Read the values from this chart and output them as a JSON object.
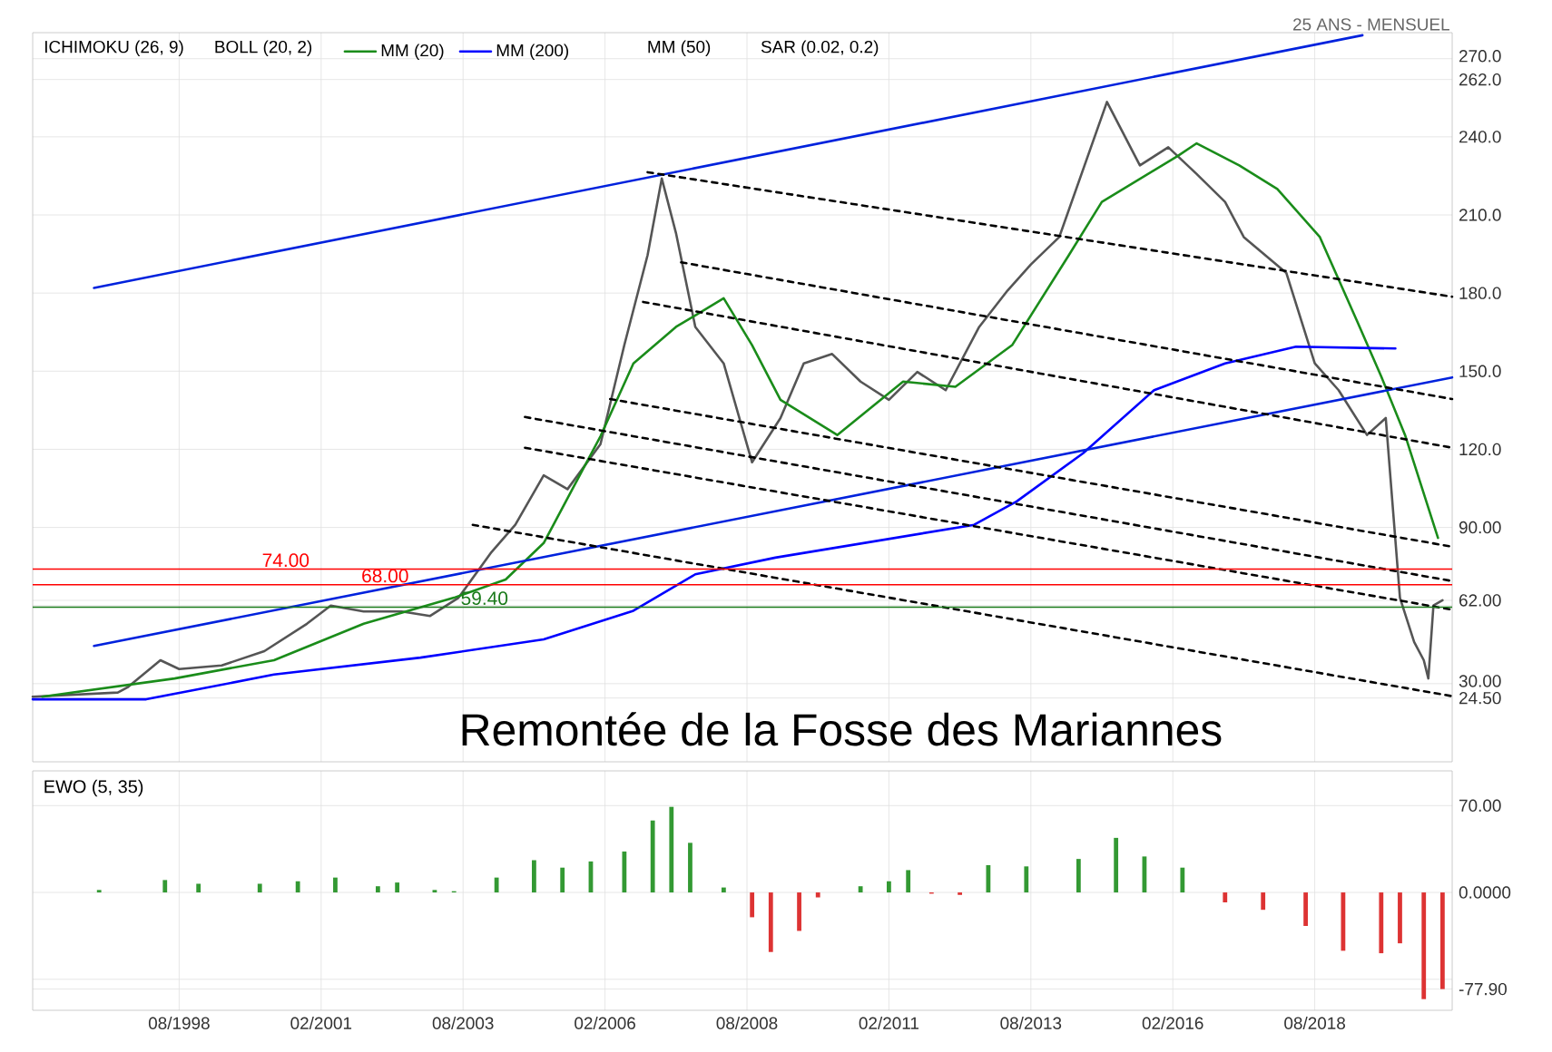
{
  "chart_data": [
    {
      "type": "line",
      "xlim": [
        "1996-01",
        "2021-01"
      ],
      "ylim": [
        0,
        280
      ],
      "xticks": [
        "1998-08",
        "2001-02",
        "2003-08",
        "2006-02",
        "2008-08",
        "2011-02",
        "2013-08",
        "2016-02",
        "2018-08"
      ],
      "yticks": [
        {
          "value": 24.5,
          "label": "24.50"
        },
        {
          "value": 30,
          "label": "30.00"
        },
        {
          "value": 60,
          "label": null
        },
        {
          "value": 62,
          "label": "62.00"
        },
        {
          "value": 90,
          "label": "90.00"
        },
        {
          "value": 120,
          "label": "120.0"
        },
        {
          "value": 150,
          "label": "150.0"
        },
        {
          "value": 180,
          "label": "180.0"
        },
        {
          "value": 210,
          "label": "210.0"
        },
        {
          "value": 240,
          "label": "240.0"
        },
        {
          "value": 262,
          "label": "262.0"
        },
        {
          "value": 270,
          "label": "270.0"
        }
      ],
      "grid": true,
      "legend": "top left",
      "tick_labels": "y",
      "series": [
        {
          "color": "#555555",
          "line_style": "solid",
          "x": [
            "1996-01",
            "1997-07",
            "1997-09",
            "1998-04",
            "1998-08",
            "1999-05",
            "2000-02",
            "2000-11",
            "2001-04",
            "2001-11",
            "2002-07",
            "2003-01",
            "2003-07",
            "2004-02",
            "2004-07",
            "2005-01",
            "2005-06",
            "2006-01",
            "2006-06",
            "2006-11",
            "2007-02",
            "2007-05",
            "2007-09",
            "2008-03",
            "2008-09",
            "2009-03",
            "2009-08",
            "2010-02",
            "2010-08",
            "2011-02",
            "2011-08",
            "2012-02",
            "2012-09",
            "2013-03",
            "2013-08",
            "2014-02",
            "2014-12",
            "2015-07",
            "2016-01",
            "2016-07",
            "2017-01",
            "2017-05",
            "2018-02",
            "2018-08",
            "2019-01",
            "2019-07",
            "2019-11",
            "2020-02",
            "2020-05",
            "2020-07",
            "2020-08",
            "2020-09",
            "2020-11"
          ],
          "values": [
            25,
            26.6,
            28.6,
            39,
            35.6,
            37,
            42.5,
            53,
            60,
            57.7,
            57.7,
            56,
            63,
            80.5,
            91,
            110,
            104.7,
            122,
            160,
            194.6,
            224,
            203,
            167,
            153,
            115,
            132,
            153,
            156.6,
            146,
            139,
            149.7,
            142.7,
            167,
            181,
            191,
            201.5,
            253.4,
            229,
            236,
            225.7,
            215,
            201.5,
            187.7,
            153,
            142.7,
            125.5,
            132,
            63,
            46,
            39,
            32,
            60,
            62
          ]
        },
        {
          "name": "MM (20)",
          "color": "#1a8c1a",
          "line_style": "solid",
          "x": [
            "1996-03",
            "1998-07",
            "2000-04",
            "2001-11",
            "2003-06",
            "2004-05",
            "2005-01",
            "2006-01",
            "2006-08",
            "2007-05",
            "2008-03",
            "2008-09",
            "2009-03",
            "2010-03",
            "2011-05",
            "2012-04",
            "2013-04",
            "2014-04",
            "2014-11",
            "2016-03",
            "2016-07",
            "2017-04",
            "2017-12",
            "2018-09",
            "2019-05",
            "2019-10",
            "2020-03",
            "2020-10"
          ],
          "values": [
            25,
            32,
            39,
            53,
            63,
            70,
            84,
            125,
            153,
            167,
            178,
            160,
            139,
            125.5,
            146,
            144,
            160,
            194.6,
            215,
            232.7,
            237.5,
            229,
            220,
            201.5,
            169,
            148,
            125.5,
            86
          ]
        },
        {
          "name": "MM (200)",
          "color": "#0000ff",
          "line_style": "solid",
          "x": [
            "1996-01",
            "1998-01",
            "2000-04",
            "2002-11",
            "2005-01",
            "2006-08",
            "2007-09",
            "2009-02",
            "2012-08",
            "2013-05",
            "2014-07",
            "2015-10",
            "2017-01",
            "2018-04",
            "2020-01"
          ],
          "values": [
            24,
            24,
            33.5,
            40,
            47,
            58,
            72,
            78.4,
            91,
            100,
            118.5,
            142.7,
            153,
            159.4,
            158.7
          ]
        },
        {
          "color": "#0022dd",
          "line_style": "solid",
          "x": [
            "1997-02",
            "2019-06"
          ],
          "values": [
            182,
            279
          ]
        },
        {
          "color": "#0022dd",
          "line_style": "solid",
          "x": [
            "1997-02",
            "2021-01"
          ],
          "values": [
            44.5,
            147.6
          ]
        },
        {
          "color": "#000000",
          "line_style": "dashed",
          "x": [
            "2006-11",
            "2021-01"
          ],
          "values": [
            226.4,
            178.6
          ]
        },
        {
          "color": "#000000",
          "line_style": "dashed",
          "x": [
            "2007-06",
            "2021-01"
          ],
          "values": [
            191.8,
            139.3
          ]
        },
        {
          "color": "#000000",
          "line_style": "dashed",
          "x": [
            "2006-10",
            "2021-01"
          ],
          "values": [
            176.6,
            120.6
          ]
        },
        {
          "color": "#000000",
          "line_style": "dashed",
          "x": [
            "2006-03",
            "2021-01"
          ],
          "values": [
            139.3,
            82.6
          ]
        },
        {
          "color": "#000000",
          "line_style": "dashed",
          "x": [
            "2004-09",
            "2021-01"
          ],
          "values": [
            132.4,
            69.4
          ]
        },
        {
          "color": "#000000",
          "line_style": "dashed",
          "x": [
            "2004-09",
            "2021-01"
          ],
          "values": [
            120.6,
            58.4
          ]
        },
        {
          "color": "#000000",
          "line_style": "dashed",
          "x": [
            "2003-10",
            "2021-01"
          ],
          "values": [
            91,
            25.2
          ]
        }
      ],
      "ref_lines": [
        {
          "axis": "y",
          "value": 74,
          "label": "74.00",
          "color": "#ff0000"
        },
        {
          "axis": "y",
          "value": 68,
          "label": "68.00",
          "color": "#ff0000"
        },
        {
          "axis": "y",
          "value": 59.4,
          "label": "59.40",
          "color": "#1a7a1a"
        }
      ],
      "annotations": [
        "25 ANS - MENSUEL",
        "ICHIMOKU (26, 9)",
        "BOLL (20, 2)",
        "MM (50)",
        "SAR (0.02, 0.2)",
        "Remontée de la Fosse des Mariannes"
      ]
    },
    {
      "type": "bar",
      "title": "EWO (5, 35)",
      "xlim": [
        "1996-01",
        "2021-01"
      ],
      "ylim": [
        -95,
        98
      ],
      "xticks": [
        {
          "value": "1998-08",
          "label": "08/1998"
        },
        {
          "value": "2001-02",
          "label": "02/2001"
        },
        {
          "value": "2003-08",
          "label": "08/2003"
        },
        {
          "value": "2006-02",
          "label": "02/2006"
        },
        {
          "value": "2008-08",
          "label": "08/2008"
        },
        {
          "value": "2011-02",
          "label": "02/2011"
        },
        {
          "value": "2013-08",
          "label": "08/2013"
        },
        {
          "value": "2016-02",
          "label": "02/2016"
        },
        {
          "value": "2018-08",
          "label": "08/2018"
        }
      ],
      "yticks": [
        {
          "value": -77.9,
          "label": "-77.90"
        },
        {
          "value": -70,
          "label": null
        },
        {
          "value": 0,
          "label": "0.0000"
        },
        {
          "value": 70,
          "label": "70.00"
        }
      ],
      "grid": true,
      "x": [
        "1997-03",
        "1998-05",
        "1998-12",
        "2000-01",
        "2000-09",
        "2001-05",
        "2002-02",
        "2002-06",
        "2003-02",
        "2003-06",
        "2004-03",
        "2004-11",
        "2005-05",
        "2005-11",
        "2006-06",
        "2006-12",
        "2007-04",
        "2007-08",
        "2008-03",
        "2008-09",
        "2009-01",
        "2009-07",
        "2009-11",
        "2010-08",
        "2011-02",
        "2011-06",
        "2011-11",
        "2012-05",
        "2012-11",
        "2013-07",
        "2014-06",
        "2015-02",
        "2015-08",
        "2016-04",
        "2017-01",
        "2017-09",
        "2018-06",
        "2019-02",
        "2019-10",
        "2020-02",
        "2020-07",
        "2020-11"
      ],
      "series": [
        {
          "color": "#339933",
          "values": [
            2,
            10,
            7,
            7,
            9,
            12,
            5,
            8,
            2,
            1,
            12,
            26,
            20,
            25,
            33,
            58,
            69,
            40,
            4,
            null,
            null,
            null,
            null,
            5,
            9,
            18,
            null,
            null,
            22,
            21,
            27,
            44,
            29,
            20,
            null,
            null,
            null,
            null,
            null,
            null,
            null,
            null
          ]
        },
        {
          "color": "#dd3333",
          "values": [
            null,
            null,
            null,
            null,
            null,
            null,
            null,
            null,
            null,
            null,
            null,
            null,
            null,
            null,
            null,
            null,
            null,
            null,
            null,
            -20,
            -48,
            -31,
            -4,
            null,
            null,
            null,
            -1,
            -2,
            null,
            null,
            null,
            null,
            null,
            null,
            -8,
            -14,
            -27,
            -47,
            -49,
            -41,
            -86,
            -77.9
          ]
        }
      ]
    }
  ]
}
